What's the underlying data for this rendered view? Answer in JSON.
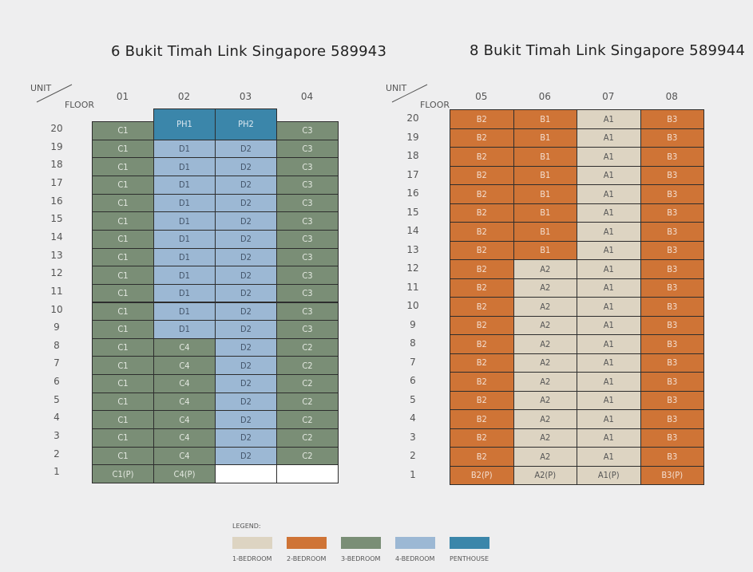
{
  "buildings": [
    {
      "title": "6 Bukit Timah Link Singapore 589943",
      "units": [
        "01",
        "02",
        "03",
        "04"
      ],
      "floors": [
        "20",
        "19",
        "18",
        "17",
        "16",
        "15",
        "14",
        "13",
        "12",
        "11",
        "10",
        "9",
        "8",
        "7",
        "6",
        "5",
        "4",
        "3",
        "2",
        "1"
      ],
      "grid": [
        [
          [
            "C1",
            "3b"
          ],
          [
            "PH1",
            "ph"
          ],
          [
            "PH2",
            "ph"
          ],
          [
            "C3",
            "3b"
          ]
        ],
        [
          [
            "C1",
            "3b"
          ],
          [
            "D1",
            "4b"
          ],
          [
            "D2",
            "4b"
          ],
          [
            "C3",
            "3b"
          ]
        ],
        [
          [
            "C1",
            "3b"
          ],
          [
            "D1",
            "4b"
          ],
          [
            "D2",
            "4b"
          ],
          [
            "C3",
            "3b"
          ]
        ],
        [
          [
            "C1",
            "3b"
          ],
          [
            "D1",
            "4b"
          ],
          [
            "D2",
            "4b"
          ],
          [
            "C3",
            "3b"
          ]
        ],
        [
          [
            "C1",
            "3b"
          ],
          [
            "D1",
            "4b"
          ],
          [
            "D2",
            "4b"
          ],
          [
            "C3",
            "3b"
          ]
        ],
        [
          [
            "C1",
            "3b"
          ],
          [
            "D1",
            "4b"
          ],
          [
            "D2",
            "4b"
          ],
          [
            "C3",
            "3b"
          ]
        ],
        [
          [
            "C1",
            "3b"
          ],
          [
            "D1",
            "4b"
          ],
          [
            "D2",
            "4b"
          ],
          [
            "C3",
            "3b"
          ]
        ],
        [
          [
            "C1",
            "3b"
          ],
          [
            "D1",
            "4b"
          ],
          [
            "D2",
            "4b"
          ],
          [
            "C3",
            "3b"
          ]
        ],
        [
          [
            "C1",
            "3b"
          ],
          [
            "D1",
            "4b"
          ],
          [
            "D2",
            "4b"
          ],
          [
            "C3",
            "3b"
          ]
        ],
        [
          [
            "C1",
            "3b"
          ],
          [
            "D1",
            "4b"
          ],
          [
            "D2",
            "4b"
          ],
          [
            "C3",
            "3b"
          ]
        ],
        [
          [
            "C1",
            "3b"
          ],
          [
            "D1",
            "4b"
          ],
          [
            "D2",
            "4b"
          ],
          [
            "C3",
            "3b"
          ]
        ],
        [
          [
            "C1",
            "3b"
          ],
          [
            "D1",
            "4b"
          ],
          [
            "D2",
            "4b"
          ],
          [
            "C3",
            "3b"
          ]
        ],
        [
          [
            "C1",
            "3b"
          ],
          [
            "C4",
            "3b"
          ],
          [
            "D2",
            "4b"
          ],
          [
            "C2",
            "3b"
          ]
        ],
        [
          [
            "C1",
            "3b"
          ],
          [
            "C4",
            "3b"
          ],
          [
            "D2",
            "4b"
          ],
          [
            "C2",
            "3b"
          ]
        ],
        [
          [
            "C1",
            "3b"
          ],
          [
            "C4",
            "3b"
          ],
          [
            "D2",
            "4b"
          ],
          [
            "C2",
            "3b"
          ]
        ],
        [
          [
            "C1",
            "3b"
          ],
          [
            "C4",
            "3b"
          ],
          [
            "D2",
            "4b"
          ],
          [
            "C2",
            "3b"
          ]
        ],
        [
          [
            "C1",
            "3b"
          ],
          [
            "C4",
            "3b"
          ],
          [
            "D2",
            "4b"
          ],
          [
            "C2",
            "3b"
          ]
        ],
        [
          [
            "C1",
            "3b"
          ],
          [
            "C4",
            "3b"
          ],
          [
            "D2",
            "4b"
          ],
          [
            "C2",
            "3b"
          ]
        ],
        [
          [
            "C1",
            "3b"
          ],
          [
            "C4",
            "3b"
          ],
          [
            "D2",
            "4b"
          ],
          [
            "C2",
            "3b"
          ]
        ],
        [
          [
            "C1(P)",
            "3b"
          ],
          [
            "C4(P)",
            "3b"
          ],
          [
            "",
            "empty"
          ],
          [
            "",
            "empty"
          ]
        ]
      ]
    },
    {
      "title": "8 Bukit Timah Link Singapore 589944",
      "units": [
        "05",
        "06",
        "07",
        "08"
      ],
      "floors": [
        "20",
        "19",
        "18",
        "17",
        "16",
        "15",
        "14",
        "13",
        "12",
        "11",
        "10",
        "9",
        "8",
        "7",
        "6",
        "5",
        "4",
        "3",
        "2",
        "1"
      ],
      "grid": [
        [
          [
            "B2",
            "2b"
          ],
          [
            "B1",
            "2b"
          ],
          [
            "A1",
            "1b"
          ],
          [
            "B3",
            "2b"
          ]
        ],
        [
          [
            "B2",
            "2b"
          ],
          [
            "B1",
            "2b"
          ],
          [
            "A1",
            "1b"
          ],
          [
            "B3",
            "2b"
          ]
        ],
        [
          [
            "B2",
            "2b"
          ],
          [
            "B1",
            "2b"
          ],
          [
            "A1",
            "1b"
          ],
          [
            "B3",
            "2b"
          ]
        ],
        [
          [
            "B2",
            "2b"
          ],
          [
            "B1",
            "2b"
          ],
          [
            "A1",
            "1b"
          ],
          [
            "B3",
            "2b"
          ]
        ],
        [
          [
            "B2",
            "2b"
          ],
          [
            "B1",
            "2b"
          ],
          [
            "A1",
            "1b"
          ],
          [
            "B3",
            "2b"
          ]
        ],
        [
          [
            "B2",
            "2b"
          ],
          [
            "B1",
            "2b"
          ],
          [
            "A1",
            "1b"
          ],
          [
            "B3",
            "2b"
          ]
        ],
        [
          [
            "B2",
            "2b"
          ],
          [
            "B1",
            "2b"
          ],
          [
            "A1",
            "1b"
          ],
          [
            "B3",
            "2b"
          ]
        ],
        [
          [
            "B2",
            "2b"
          ],
          [
            "B1",
            "2b"
          ],
          [
            "A1",
            "1b"
          ],
          [
            "B3",
            "2b"
          ]
        ],
        [
          [
            "B2",
            "2b"
          ],
          [
            "A2",
            "1b"
          ],
          [
            "A1",
            "1b"
          ],
          [
            "B3",
            "2b"
          ]
        ],
        [
          [
            "B2",
            "2b"
          ],
          [
            "A2",
            "1b"
          ],
          [
            "A1",
            "1b"
          ],
          [
            "B3",
            "2b"
          ]
        ],
        [
          [
            "B2",
            "2b"
          ],
          [
            "A2",
            "1b"
          ],
          [
            "A1",
            "1b"
          ],
          [
            "B3",
            "2b"
          ]
        ],
        [
          [
            "B2",
            "2b"
          ],
          [
            "A2",
            "1b"
          ],
          [
            "A1",
            "1b"
          ],
          [
            "B3",
            "2b"
          ]
        ],
        [
          [
            "B2",
            "2b"
          ],
          [
            "A2",
            "1b"
          ],
          [
            "A1",
            "1b"
          ],
          [
            "B3",
            "2b"
          ]
        ],
        [
          [
            "B2",
            "2b"
          ],
          [
            "A2",
            "1b"
          ],
          [
            "A1",
            "1b"
          ],
          [
            "B3",
            "2b"
          ]
        ],
        [
          [
            "B2",
            "2b"
          ],
          [
            "A2",
            "1b"
          ],
          [
            "A1",
            "1b"
          ],
          [
            "B3",
            "2b"
          ]
        ],
        [
          [
            "B2",
            "2b"
          ],
          [
            "A2",
            "1b"
          ],
          [
            "A1",
            "1b"
          ],
          [
            "B3",
            "2b"
          ]
        ],
        [
          [
            "B2",
            "2b"
          ],
          [
            "A2",
            "1b"
          ],
          [
            "A1",
            "1b"
          ],
          [
            "B3",
            "2b"
          ]
        ],
        [
          [
            "B2",
            "2b"
          ],
          [
            "A2",
            "1b"
          ],
          [
            "A1",
            "1b"
          ],
          [
            "B3",
            "2b"
          ]
        ],
        [
          [
            "B2",
            "2b"
          ],
          [
            "A2",
            "1b"
          ],
          [
            "A1",
            "1b"
          ],
          [
            "B3",
            "2b"
          ]
        ],
        [
          [
            "B2(P)",
            "2b"
          ],
          [
            "A2(P)",
            "1b"
          ],
          [
            "A1(P)",
            "1b"
          ],
          [
            "B3(P)",
            "2b"
          ]
        ]
      ]
    }
  ],
  "corner": {
    "unit_label": "UNIT",
    "floor_label": "FLOOR"
  },
  "legend": {
    "title": "LEGEND:",
    "items": [
      {
        "label": "1-BEDROOM",
        "type": "1b",
        "color": "#ddd4c2"
      },
      {
        "label": "2-BEDROOM",
        "type": "2b",
        "color": "#cf7436"
      },
      {
        "label": "3-BEDROOM",
        "type": "3b",
        "color": "#7a8e76"
      },
      {
        "label": "4-BEDROOM",
        "type": "4b",
        "color": "#9cb8d4"
      },
      {
        "label": "PENTHOUSE",
        "type": "ph",
        "color": "#3b86aa"
      }
    ]
  }
}
